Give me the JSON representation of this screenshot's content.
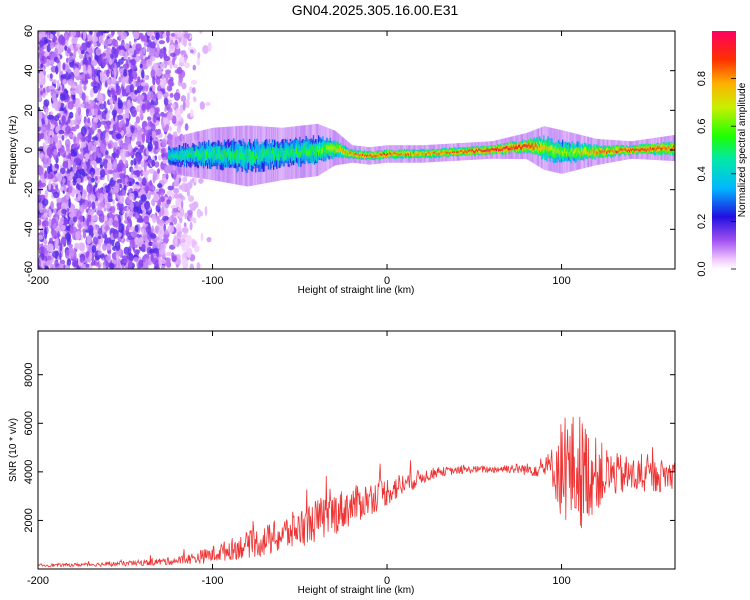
{
  "chart_data": [
    {
      "type": "heatmap",
      "title": "GN04.2025.305.16.00.E31",
      "xlabel": "Height of straight line (km)",
      "ylabel": "Frequency (Hz)",
      "xlim": [
        -200,
        165
      ],
      "ylim": [
        -60,
        60
      ],
      "x_ticks": [
        -200,
        -100,
        0,
        100
      ],
      "y_ticks": [
        -60,
        -40,
        -20,
        0,
        20,
        40,
        60
      ],
      "noise_region_x": [
        -200,
        -110
      ],
      "signal_band": {
        "x": [
          -125,
          -100,
          -80,
          -60,
          -40,
          -30,
          -20,
          -10,
          0,
          20,
          40,
          60,
          80,
          90,
          100,
          120,
          140,
          165
        ],
        "center_hz": [
          -3,
          -2,
          -3,
          -2,
          0,
          1,
          -2,
          -3,
          -2,
          -2,
          -1,
          0,
          2,
          1,
          -1,
          -1,
          0,
          1
        ],
        "amplitude": [
          0.45,
          0.5,
          0.5,
          0.5,
          0.55,
          0.7,
          0.8,
          0.85,
          0.85,
          0.8,
          0.85,
          0.95,
          0.9,
          0.75,
          0.6,
          0.8,
          0.9,
          0.85
        ],
        "halfwidth_hz": [
          4,
          6,
          7,
          6,
          6,
          4,
          2,
          2,
          2,
          2,
          2,
          2,
          3,
          5,
          5,
          3,
          2,
          3
        ]
      },
      "colorbar": {
        "label": "Normalized spectral amplitude",
        "range": [
          0,
          1
        ],
        "ticks": [
          0.0,
          0.2,
          0.4,
          0.6,
          0.8
        ],
        "tick_labels": [
          "0.0",
          "0.2",
          "0.4",
          "0.6",
          "0.8"
        ]
      }
    },
    {
      "type": "line",
      "xlabel": "Height of straight line (km)",
      "ylabel": "SNR (10 * v/v)",
      "xlim": [
        -200,
        165
      ],
      "ylim": [
        0,
        9800
      ],
      "x_ticks": [
        -200,
        -100,
        0,
        100
      ],
      "y_ticks": [
        2000,
        4000,
        6000,
        8000
      ],
      "color": "#ee3333",
      "series": [
        {
          "name": "SNR",
          "x": [
            -200,
            -180,
            -160,
            -140,
            -120,
            -110,
            -100,
            -90,
            -80,
            -70,
            -60,
            -50,
            -40,
            -30,
            -20,
            -10,
            0,
            10,
            20,
            30,
            40,
            50,
            60,
            70,
            80,
            90,
            95,
            100,
            110,
            120,
            130,
            140,
            150,
            165
          ],
          "values": [
            150,
            170,
            200,
            250,
            350,
            450,
            600,
            800,
            1000,
            1150,
            1400,
            1700,
            2000,
            2300,
            2600,
            2900,
            3200,
            3500,
            3800,
            4000,
            4050,
            4100,
            4100,
            4150,
            4100,
            4150,
            4200,
            4100,
            4000,
            3900,
            3900,
            3850,
            3800,
            3900
          ],
          "noise": [
            60,
            70,
            90,
            120,
            180,
            250,
            350,
            450,
            550,
            650,
            750,
            800,
            900,
            900,
            800,
            700,
            600,
            500,
            300,
            200,
            150,
            150,
            150,
            200,
            250,
            400,
            900,
            2200,
            2500,
            1500,
            900,
            800,
            700,
            650
          ]
        }
      ]
    }
  ]
}
